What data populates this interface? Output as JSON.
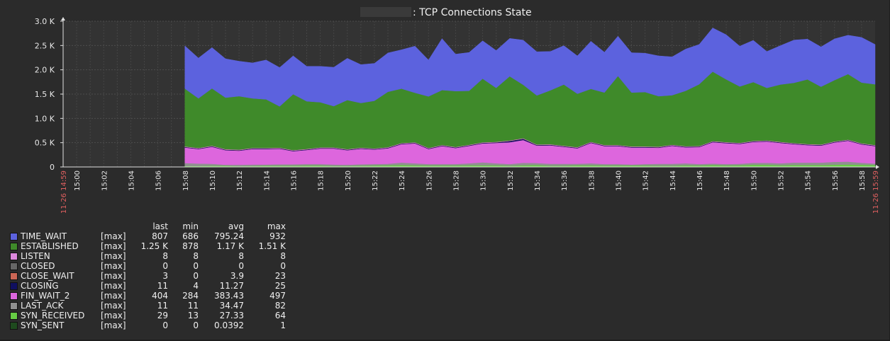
{
  "chart_data": {
    "type": "area",
    "stacked": true,
    "title": ": TCP Connections State",
    "y_ticks": [
      "0",
      "0.5 K",
      "1.0 K",
      "1.5 K",
      "2.0 K",
      "2.5 K",
      "3.0 K"
    ],
    "ylim": [
      0,
      3000
    ],
    "x_range_minutes": [
      0,
      60
    ],
    "x_start_label": "11-26 14:59",
    "x_end_label": "11-26 15:59",
    "x_tick_labels": [
      "15:00",
      "15:02",
      "15:04",
      "15:06",
      "15:08",
      "15:10",
      "15:12",
      "15:14",
      "15:16",
      "15:18",
      "15:20",
      "15:22",
      "15:24",
      "15:26",
      "15:28",
      "15:30",
      "15:32",
      "15:34",
      "15:36",
      "15:38",
      "15:40",
      "15:42",
      "15:44",
      "15:46",
      "15:48",
      "15:50",
      "15:52",
      "15:54",
      "15:56",
      "15:58"
    ],
    "x_tick_minutes": [
      1,
      3,
      5,
      7,
      9,
      11,
      13,
      15,
      17,
      19,
      21,
      23,
      25,
      27,
      29,
      31,
      33,
      35,
      37,
      39,
      41,
      43,
      45,
      47,
      49,
      51,
      53,
      55,
      57,
      59
    ],
    "x_minutes": [
      9,
      10,
      11,
      12,
      13,
      14,
      15,
      16,
      17,
      18,
      19,
      20,
      21,
      22,
      23,
      24,
      25,
      26,
      27,
      28,
      29,
      30,
      31,
      32,
      33,
      34,
      35,
      36,
      37,
      38,
      39,
      40,
      41,
      42,
      43,
      44,
      45,
      46,
      47,
      48,
      49,
      50,
      51,
      52,
      53,
      54,
      55,
      56,
      57,
      58,
      59,
      60
    ],
    "series": [
      {
        "name": "SYN_RECEIVED",
        "color": "#66cc44",
        "values": [
          20,
          20,
          25,
          25,
          15,
          20,
          25,
          25,
          25,
          30,
          30,
          20,
          20,
          25,
          30,
          35,
          40,
          35,
          30,
          30,
          30,
          35,
          35,
          35,
          25,
          35,
          40,
          25,
          25,
          35,
          35,
          30,
          30,
          30,
          30,
          25,
          25,
          35,
          30,
          40,
          30,
          35,
          45,
          45,
          35,
          40,
          40,
          40,
          45,
          50,
          45,
          40
        ]
      },
      {
        "name": "LAST_ACK",
        "color": "#909090",
        "values": [
          60,
          50,
          40,
          20,
          30,
          30,
          25,
          30,
          30,
          30,
          30,
          30,
          25,
          30,
          30,
          30,
          50,
          40,
          30,
          30,
          30,
          40,
          60,
          40,
          35,
          50,
          40,
          40,
          40,
          30,
          40,
          30,
          30,
          20,
          30,
          40,
          40,
          40,
          30,
          30,
          30,
          30,
          40,
          40,
          40,
          50,
          50,
          50,
          60,
          60,
          40,
          30
        ]
      },
      {
        "name": "FIN_WAIT_2",
        "color": "#dd66dd",
        "values": [
          320,
          300,
          350,
          300,
          290,
          320,
          320,
          320,
          270,
          290,
          320,
          330,
          300,
          320,
          300,
          320,
          380,
          410,
          310,
          370,
          330,
          360,
          390,
          420,
          450,
          470,
          360,
          380,
          350,
          320,
          420,
          370,
          370,
          350,
          340,
          330,
          370,
          330,
          350,
          440,
          430,
          410,
          430,
          440,
          420,
          380,
          360,
          350,
          400,
          430,
          380,
          360
        ]
      },
      {
        "name": "CLOSING",
        "color": "#101060",
        "values": [
          11,
          11,
          11,
          11,
          11,
          11,
          11,
          11,
          11,
          11,
          11,
          11,
          11,
          11,
          11,
          11,
          11,
          11,
          11,
          11,
          11,
          11,
          11,
          11,
          25,
          25,
          11,
          11,
          11,
          11,
          11,
          11,
          11,
          11,
          11,
          11,
          11,
          11,
          11,
          11,
          11,
          11,
          11,
          11,
          11,
          11,
          11,
          11,
          11,
          11,
          11,
          11
        ]
      },
      {
        "name": "CLOSE_WAIT",
        "color": "#cc6655",
        "values": [
          3,
          3,
          3,
          3,
          3,
          3,
          3,
          3,
          3,
          3,
          3,
          3,
          3,
          3,
          3,
          3,
          3,
          3,
          3,
          3,
          3,
          3,
          3,
          3,
          3,
          3,
          3,
          3,
          3,
          3,
          3,
          3,
          3,
          3,
          3,
          3,
          3,
          3,
          3,
          3,
          3,
          3,
          3,
          3,
          3,
          3,
          3,
          3,
          3,
          3,
          3,
          3
        ]
      },
      {
        "name": "LISTEN",
        "color": "#dd88dd",
        "values": [
          8,
          8,
          8,
          8,
          8,
          8,
          8,
          8,
          8,
          8,
          8,
          8,
          8,
          8,
          8,
          8,
          8,
          8,
          8,
          8,
          8,
          8,
          8,
          8,
          8,
          8,
          8,
          8,
          8,
          8,
          8,
          8,
          8,
          8,
          8,
          8,
          8,
          8,
          8,
          8,
          8,
          8,
          8,
          8,
          8,
          8,
          8,
          8,
          8,
          8,
          8,
          8
        ]
      },
      {
        "name": "ESTABLISHED",
        "color": "#3f8a2a",
        "values": [
          1190,
          1020,
          1180,
          1060,
          1100,
          1020,
          1000,
          850,
          1150,
          980,
          930,
          850,
          1010,
          920,
          980,
          1140,
          1120,
          1020,
          1060,
          1130,
          1150,
          1110,
          1310,
          1110,
          1320,
          1100,
          1010,
          1110,
          1260,
          1100,
          1090,
          1080,
          1420,
          1110,
          1120,
          1040,
          1020,
          1140,
          1270,
          1430,
          1290,
          1160,
          1210,
          1080,
          1180,
          1240,
          1330,
          1190,
          1260,
          1350,
          1250,
          1250
        ]
      },
      {
        "name": "TIME_WAIT",
        "color": "#5c62de",
        "values": [
          880,
          830,
          840,
          800,
          720,
          730,
          810,
          800,
          790,
          720,
          740,
          800,
          860,
          790,
          770,
          800,
          800,
          960,
          750,
          1060,
          760,
          790,
          780,
          770,
          780,
          920,
          900,
          800,
          800,
          780,
          980,
          830,
          820,
          820,
          800,
          830,
          790,
          860,
          820,
          900,
          920,
          830,
          860,
          750,
          800,
          880,
          830,
          820,
          850,
          800,
          930,
          820
        ]
      }
    ]
  },
  "legend": {
    "headers": {
      "last": "last",
      "min": "min",
      "avg": "avg",
      "max": "max"
    },
    "rows": [
      {
        "name": "TIME_WAIT",
        "color": "#5c62de",
        "fn": "[max]",
        "last": "807",
        "min": "686",
        "avg": "795.24",
        "max": "932"
      },
      {
        "name": "ESTABLISHED",
        "color": "#3f8a2a",
        "fn": "[max]",
        "last": "1.25 K",
        "min": "878",
        "avg": "1.17 K",
        "max": "1.51 K"
      },
      {
        "name": "LISTEN",
        "color": "#dd88dd",
        "fn": "[max]",
        "last": "8",
        "min": "8",
        "avg": "8",
        "max": "8"
      },
      {
        "name": "CLOSED",
        "color": "#666666",
        "fn": "[max]",
        "last": "0",
        "min": "0",
        "avg": "0",
        "max": "0"
      },
      {
        "name": "CLOSE_WAIT",
        "color": "#cc6655",
        "fn": "[max]",
        "last": "3",
        "min": "0",
        "avg": "3.9",
        "max": "23"
      },
      {
        "name": "CLOSING",
        "color": "#101060",
        "fn": "[max]",
        "last": "11",
        "min": "4",
        "avg": "11.27",
        "max": "25"
      },
      {
        "name": "FIN_WAIT_2",
        "color": "#dd66dd",
        "fn": "[max]",
        "last": "404",
        "min": "284",
        "avg": "383.43",
        "max": "497"
      },
      {
        "name": "LAST_ACK",
        "color": "#909090",
        "fn": "[max]",
        "last": "11",
        "min": "11",
        "avg": "34.47",
        "max": "82"
      },
      {
        "name": "SYN_RECEIVED",
        "color": "#66cc44",
        "fn": "[max]",
        "last": "29",
        "min": "13",
        "avg": "27.33",
        "max": "64"
      },
      {
        "name": "SYN_SENT",
        "color": "#1e4a1e",
        "fn": "[max]",
        "last": "0",
        "min": "0",
        "avg": "0.0392",
        "max": "1"
      }
    ]
  }
}
